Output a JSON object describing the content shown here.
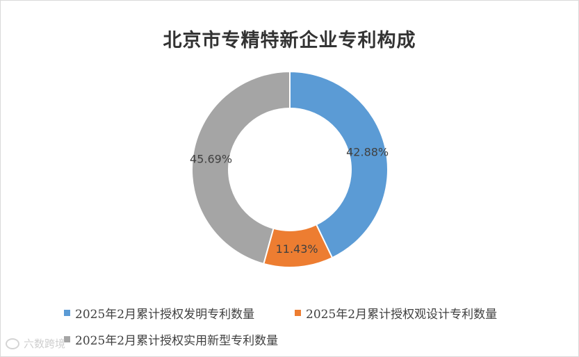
{
  "chart_data": {
    "type": "pie",
    "donut": true,
    "title": "北京市专精特新企业专利构成",
    "categories": [
      "2025年2月累计授权发明专利数量",
      "2025年2月累计授权观设计专利数量",
      "2025年2月累计授权实用新型专利数量"
    ],
    "values": [
      42.88,
      11.43,
      45.69
    ],
    "value_labels": [
      "42.88%",
      "11.43%",
      "45.69%"
    ],
    "colors": [
      "#5b9bd5",
      "#ed7d31",
      "#a5a5a5"
    ],
    "legend_position": "bottom"
  },
  "watermark": {
    "text": "六数跨境",
    "icon": "cube-logo-icon"
  }
}
